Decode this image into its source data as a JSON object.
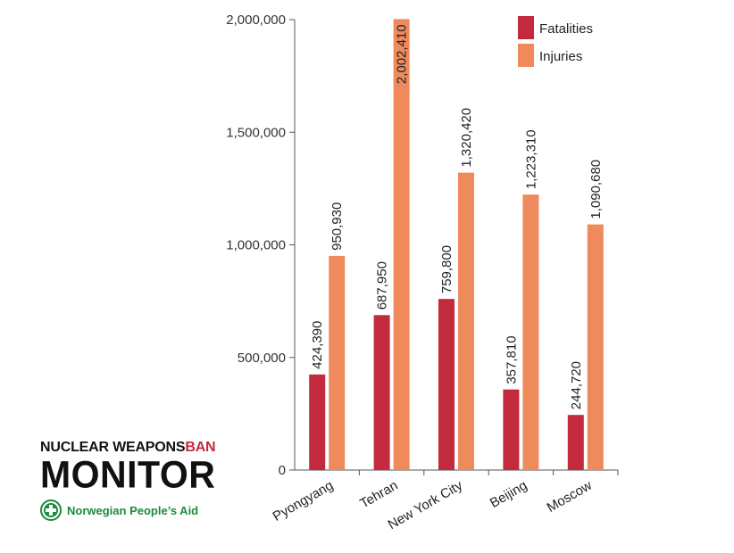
{
  "chart_data": {
    "type": "bar",
    "categories": [
      "Pyongyang",
      "Tehran",
      "New York City",
      "Beijing",
      "Moscow"
    ],
    "series": [
      {
        "name": "Fatalities",
        "color": "#c32a3c",
        "values": [
          424390,
          687950,
          759800,
          357810,
          244720
        ],
        "labels": [
          "424,390",
          "687,950",
          "759,800",
          "357,810",
          "244,720"
        ]
      },
      {
        "name": "Injuries",
        "color": "#ee8a5c",
        "values": [
          950930,
          2002410,
          1320420,
          1223310,
          1090680
        ],
        "labels": [
          "950,930",
          "2,002,410",
          "1,320,420",
          "1,223,310",
          "1,090,680"
        ]
      }
    ],
    "ylim": [
      0,
      2000000
    ],
    "yticks": [
      0,
      500000,
      1000000,
      1500000,
      2000000
    ],
    "ytick_labels": [
      "0",
      "500,000",
      "1,000,000",
      "1,500,000",
      "2,000,000"
    ],
    "legend_position": "top-right",
    "grid": false
  },
  "branding": {
    "title_part1": "NUCLEAR WEAPONS",
    "title_part2": "BAN",
    "title_line2": "MONITOR",
    "org_name": "Norwegian People’s Aid",
    "org_logo_icon": "npa-cross-logo-icon"
  }
}
